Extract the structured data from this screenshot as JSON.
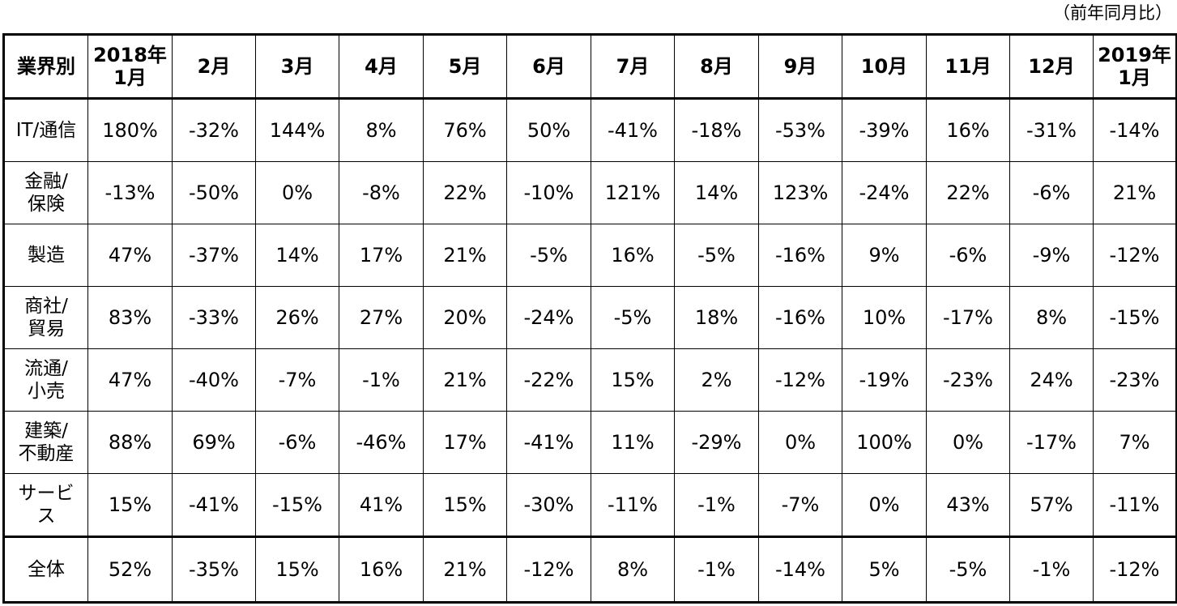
{
  "note": "（前年同月比）",
  "headers": [
    [
      "業界別"
    ],
    [
      "2018年",
      "1月"
    ],
    [
      "2月"
    ],
    [
      "3月"
    ],
    [
      "4月"
    ],
    [
      "5月"
    ],
    [
      "6月"
    ],
    [
      "7月"
    ],
    [
      "8月"
    ],
    [
      "9月"
    ],
    [
      "10月"
    ],
    [
      "11月"
    ],
    [
      "12月"
    ],
    [
      "2019年",
      "1月"
    ]
  ],
  "rows": [
    {
      "label": [
        "IT/通信"
      ],
      "values": [
        "180%",
        "-32%",
        "144%",
        "8%",
        "76%",
        "50%",
        "-41%",
        "-18%",
        "-53%",
        "-39%",
        "16%",
        "-31%",
        "-14%"
      ]
    },
    {
      "label": [
        "金融/",
        "保険"
      ],
      "values": [
        "-13%",
        "-50%",
        "0%",
        "-8%",
        "22%",
        "-10%",
        "121%",
        "14%",
        "123%",
        "-24%",
        "22%",
        "-6%",
        "21%"
      ]
    },
    {
      "label": [
        "製造"
      ],
      "values": [
        "47%",
        "-37%",
        "14%",
        "17%",
        "21%",
        "-5%",
        "16%",
        "-5%",
        "-16%",
        "9%",
        "-6%",
        "-9%",
        "-12%"
      ]
    },
    {
      "label": [
        "商社/",
        "貿易"
      ],
      "values": [
        "83%",
        "-33%",
        "26%",
        "27%",
        "20%",
        "-24%",
        "-5%",
        "18%",
        "-16%",
        "10%",
        "-17%",
        "8%",
        "-15%"
      ]
    },
    {
      "label": [
        "流通/",
        "小売"
      ],
      "values": [
        "47%",
        "-40%",
        "-7%",
        "-1%",
        "21%",
        "-22%",
        "15%",
        "2%",
        "-12%",
        "-19%",
        "-23%",
        "24%",
        "-23%"
      ]
    },
    {
      "label": [
        "建築/",
        "不動産"
      ],
      "values": [
        "88%",
        "69%",
        "-6%",
        "-46%",
        "17%",
        "-41%",
        "11%",
        "-29%",
        "0%",
        "100%",
        "0%",
        "-17%",
        "7%"
      ]
    },
    {
      "label": [
        "サービ",
        "ス"
      ],
      "values": [
        "15%",
        "-41%",
        "-15%",
        "41%",
        "15%",
        "-30%",
        "-11%",
        "-1%",
        "-7%",
        "0%",
        "43%",
        "57%",
        "-11%"
      ]
    }
  ],
  "total": {
    "label": [
      "全体"
    ],
    "values": [
      "52%",
      "-35%",
      "15%",
      "16%",
      "21%",
      "-12%",
      "8%",
      "-1%",
      "-14%",
      "5%",
      "-5%",
      "-1%",
      "-12%"
    ]
  }
}
